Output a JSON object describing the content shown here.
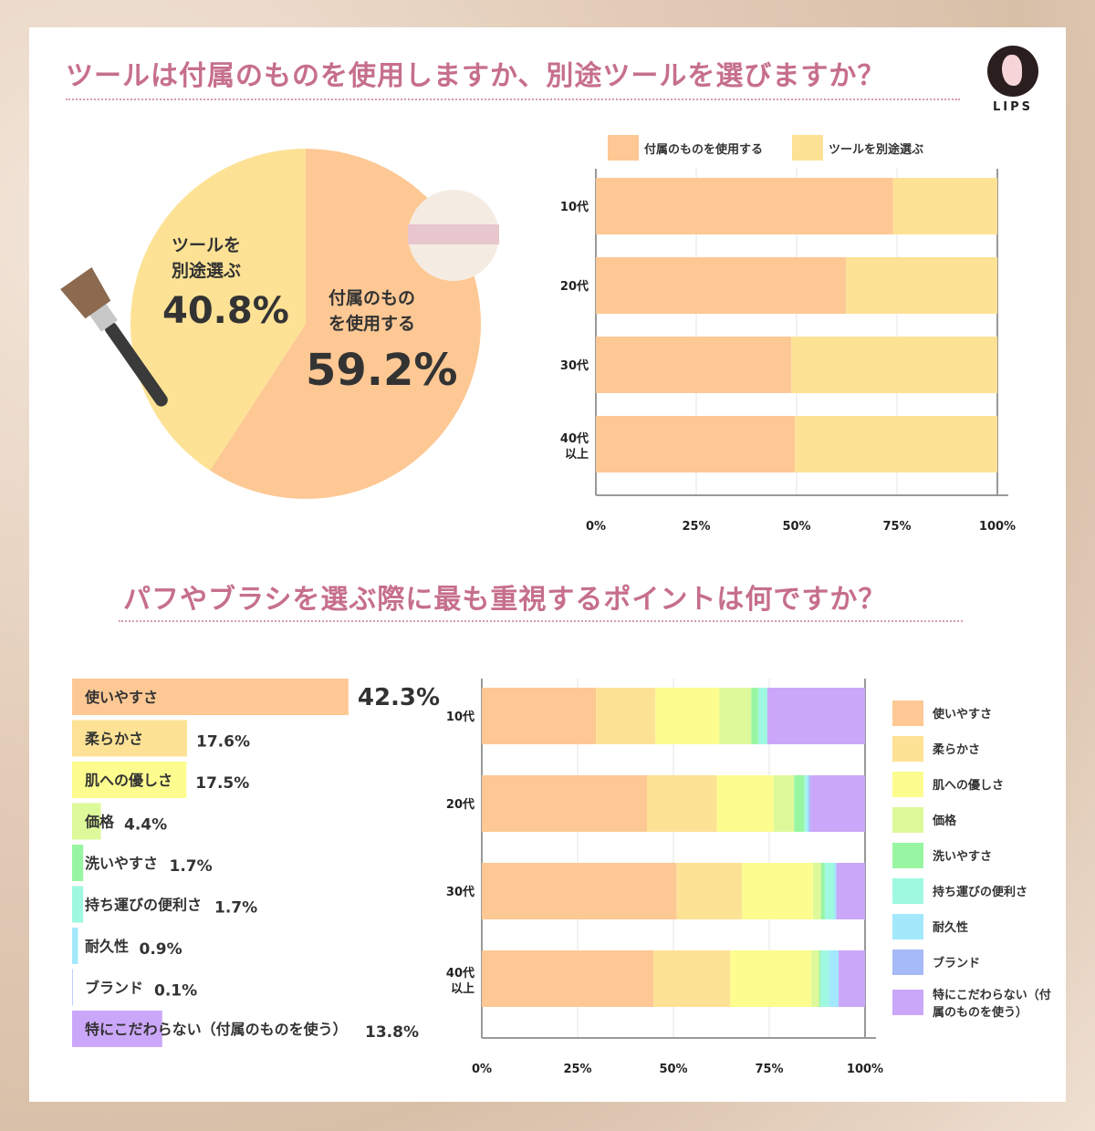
{
  "titles": {
    "q1": "ツールは付属のものを使用しますか、別途ツールを選びますか？",
    "q2": "パフやブラシを選ぶ際に最も重視するポイントは何ですか？"
  },
  "logo": "LIPS",
  "chart_data": [
    {
      "type": "pie",
      "slices": [
        {
          "label": "付属のものを使用する",
          "value": 59.2,
          "display": "59.2%",
          "color": "#fdc894"
        },
        {
          "label": "ツールを別途選ぶ",
          "value": 40.8,
          "display": "40.8%",
          "color": "#fde295"
        }
      ]
    },
    {
      "type": "bar",
      "orientation": "horizontal",
      "stacked": true,
      "categories": [
        "10代",
        "20代",
        "30代",
        "40代以上"
      ],
      "series": [
        {
          "name": "付属のものを使用する",
          "color": "#fdc894",
          "values": [
            74.0,
            62.3,
            48.7,
            49.6
          ]
        },
        {
          "name": "ツールを別途選ぶ",
          "color": "#fde295",
          "values": [
            26.0,
            37.7,
            51.3,
            50.4
          ]
        }
      ],
      "xticks": [
        "0%",
        "25%",
        "50%",
        "75%",
        "100%"
      ],
      "xlim": [
        0,
        100
      ],
      "grid": true,
      "legend": "top"
    },
    {
      "type": "bar",
      "orientation": "horizontal",
      "categories": [
        "使いやすさ",
        "柔らかさ",
        "肌への優しさ",
        "価格",
        "洗いやすさ",
        "持ち運びの便利さ",
        "耐久性",
        "ブランド",
        "特にこだわらない（付属のものを使う）"
      ],
      "values": [
        42.3,
        17.6,
        17.5,
        4.4,
        1.7,
        1.7,
        0.9,
        0.1,
        13.8
      ],
      "labels": [
        "42.3%",
        "17.6%",
        "17.5%",
        "4.4%",
        "1.7%",
        "1.7%",
        "0.9%",
        "0.1%",
        "13.8%"
      ],
      "colors": [
        "#fdc894",
        "#fde295",
        "#fcfc8f",
        "#def99a",
        "#98f6a2",
        "#9ff8e0",
        "#a3e8fb",
        "#a6baf8",
        "#cba7f9"
      ]
    },
    {
      "type": "bar",
      "orientation": "horizontal",
      "stacked": true,
      "categories": [
        "10代",
        "20代",
        "30代",
        "40代以上"
      ],
      "series": [
        {
          "name": "使いやすさ",
          "color": "#fdc894",
          "values": [
            29.8,
            43.1,
            50.8,
            44.8
          ]
        },
        {
          "name": "柔らかさ",
          "color": "#fde295",
          "values": [
            15.5,
            18.2,
            17.1,
            20.0
          ]
        },
        {
          "name": "肌への優しさ",
          "color": "#fcfc8f",
          "values": [
            16.7,
            14.9,
            18.5,
            21.2
          ]
        },
        {
          "name": "価格",
          "color": "#def99a",
          "values": [
            8.3,
            5.3,
            2.1,
            2.0
          ]
        },
        {
          "name": "洗いやすさ",
          "color": "#98f6a2",
          "values": [
            1.8,
            2.6,
            1.0,
            0.4
          ]
        },
        {
          "name": "持ち運びの便利さ",
          "color": "#9ff8e0",
          "values": [
            2.4,
            0.7,
            2.4,
            2.2
          ]
        },
        {
          "name": "耐久性",
          "color": "#a3e8fb",
          "values": [
            0,
            0.5,
            0.6,
            2.5
          ]
        },
        {
          "name": "ブランド",
          "color": "#a6baf8",
          "values": [
            0,
            0.5,
            0,
            0
          ]
        },
        {
          "name": "特にこだわらない（付属のものを使う）",
          "color": "#cba7f9",
          "values": [
            25.5,
            14.2,
            7.5,
            6.9
          ]
        }
      ],
      "xticks": [
        "0%",
        "25%",
        "50%",
        "75%",
        "100%"
      ],
      "xlim": [
        0,
        100
      ],
      "grid": true,
      "legend": "right"
    }
  ]
}
